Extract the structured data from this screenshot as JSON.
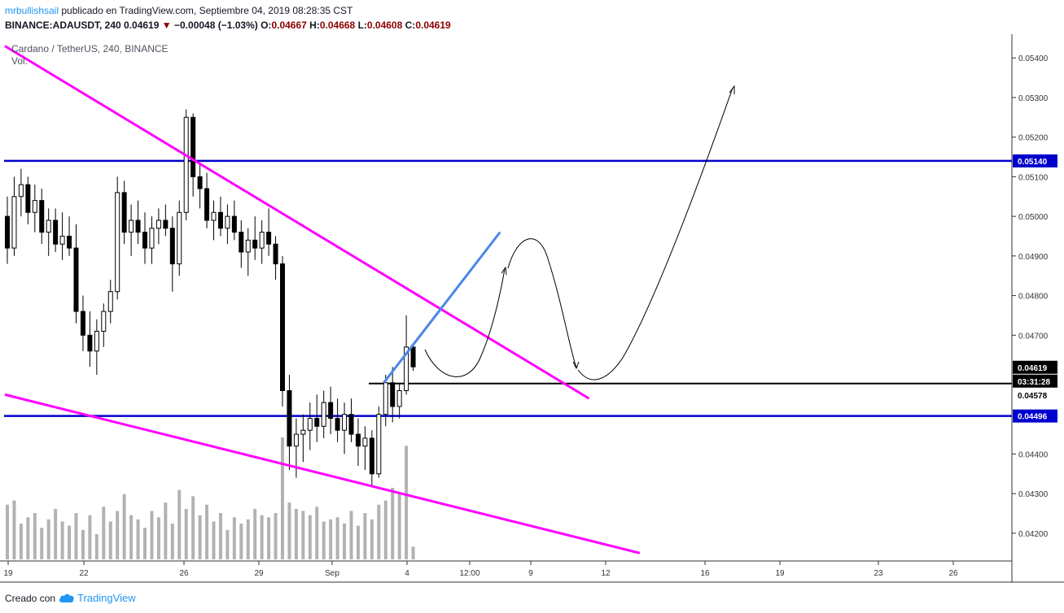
{
  "header": {
    "user": "mrbullishsail",
    "published": "publicado en TradingView.com, Septiembre 04, 2019 08:28:35 CST",
    "symbol": "BINANCE:ADAUSDT, 240",
    "last": "0.04619",
    "change_arrow": "▼",
    "change": "−0.00048 (−1.03%)",
    "o_label": "O:",
    "o": "0.04667",
    "h_label": "H:",
    "h": "0.04668",
    "l_label": "L:",
    "l": "0.04608",
    "c_label": "C:",
    "c": "0.04619"
  },
  "legend": {
    "title": "Cardano / TetherUS, 240, BINANCE",
    "volume": "Vol."
  },
  "footer": {
    "created_with": "Creado con",
    "brand": "TradingView",
    "brand_icon": "tradingview-cloud-icon"
  },
  "colors": {
    "candle": "#000000",
    "volume": "#b2b2b2",
    "support_resistance": "#0000cc",
    "trendline": "#ff00ff",
    "channel_line": "#4a86e8",
    "current_price": "#000000"
  },
  "chart_data": {
    "type": "candlestick",
    "y_axis": {
      "ticks": [
        "0.05400",
        "0.05300",
        "0.05200",
        "0.05100",
        "0.05000",
        "0.04900",
        "0.04800",
        "0.04700",
        "0.04400",
        "0.04300",
        "0.04200"
      ],
      "range": [
        0.0413,
        0.0546
      ]
    },
    "x_axis": {
      "ticks": [
        "19",
        "22",
        "26",
        "29",
        "Sep",
        "4",
        "12:00",
        "9",
        "12",
        "16",
        "19",
        "23",
        "26"
      ]
    },
    "price_labels": [
      {
        "text": "0.05140",
        "value": 0.0514,
        "style": "blue"
      },
      {
        "text": "0.04619",
        "value": 0.04619,
        "style": "black"
      },
      {
        "text": "03:31:28",
        "value": 0.04601,
        "style": "black"
      },
      {
        "text": "0.04578",
        "value": 0.04578,
        "style": "white"
      },
      {
        "text": "0.04496",
        "value": 0.04496,
        "style": "blue"
      }
    ],
    "horizontal_levels": [
      0.0514,
      0.04496
    ],
    "current_level": 0.04578,
    "candles": [
      [
        0.05,
        0.0505,
        0.0488,
        0.0492
      ],
      [
        0.0492,
        0.051,
        0.049,
        0.0505
      ],
      [
        0.0505,
        0.0512,
        0.05,
        0.0508
      ],
      [
        0.0508,
        0.051,
        0.0498,
        0.0501
      ],
      [
        0.0501,
        0.0508,
        0.0496,
        0.0504
      ],
      [
        0.0504,
        0.0507,
        0.0493,
        0.0496
      ],
      [
        0.0496,
        0.0502,
        0.049,
        0.0499
      ],
      [
        0.0499,
        0.0502,
        0.0491,
        0.0493
      ],
      [
        0.0493,
        0.0501,
        0.0489,
        0.0495
      ],
      [
        0.0495,
        0.05,
        0.049,
        0.0492
      ],
      [
        0.0492,
        0.0498,
        0.0473,
        0.0476
      ],
      [
        0.0476,
        0.048,
        0.0466,
        0.047
      ],
      [
        0.047,
        0.0476,
        0.0462,
        0.0466
      ],
      [
        0.0466,
        0.0474,
        0.046,
        0.0471
      ],
      [
        0.0471,
        0.0478,
        0.0467,
        0.0476
      ],
      [
        0.0476,
        0.0484,
        0.0473,
        0.0481
      ],
      [
        0.0481,
        0.051,
        0.0479,
        0.0506
      ],
      [
        0.0506,
        0.0509,
        0.0493,
        0.0496
      ],
      [
        0.0496,
        0.0503,
        0.049,
        0.0499
      ],
      [
        0.0499,
        0.0504,
        0.0493,
        0.0496
      ],
      [
        0.0496,
        0.0501,
        0.0488,
        0.0492
      ],
      [
        0.0492,
        0.05,
        0.0488,
        0.0497
      ],
      [
        0.0497,
        0.0502,
        0.0493,
        0.0499
      ],
      [
        0.0499,
        0.0503,
        0.0495,
        0.0497
      ],
      [
        0.0497,
        0.05,
        0.0481,
        0.0488
      ],
      [
        0.0488,
        0.0504,
        0.0485,
        0.0501
      ],
      [
        0.0501,
        0.0527,
        0.0499,
        0.0525
      ],
      [
        0.0525,
        0.0526,
        0.0505,
        0.051
      ],
      [
        0.051,
        0.0513,
        0.0502,
        0.0507
      ],
      [
        0.0507,
        0.0511,
        0.0497,
        0.0499
      ],
      [
        0.0499,
        0.0504,
        0.0494,
        0.0501
      ],
      [
        0.0501,
        0.0505,
        0.0495,
        0.0497
      ],
      [
        0.0497,
        0.0503,
        0.0493,
        0.05
      ],
      [
        0.05,
        0.0504,
        0.0494,
        0.0496
      ],
      [
        0.0496,
        0.0499,
        0.0487,
        0.0491
      ],
      [
        0.0491,
        0.0497,
        0.0485,
        0.0494
      ],
      [
        0.0494,
        0.05,
        0.0489,
        0.0492
      ],
      [
        0.0492,
        0.0499,
        0.0488,
        0.0496
      ],
      [
        0.0496,
        0.0502,
        0.049,
        0.0493
      ],
      [
        0.0493,
        0.0495,
        0.0484,
        0.0488
      ],
      [
        0.0488,
        0.049,
        0.0452,
        0.0456
      ],
      [
        0.0456,
        0.046,
        0.0436,
        0.0442
      ],
      [
        0.0442,
        0.0449,
        0.0434,
        0.0445
      ],
      [
        0.0445,
        0.045,
        0.0438,
        0.0446
      ],
      [
        0.0446,
        0.0453,
        0.0441,
        0.0449
      ],
      [
        0.0449,
        0.0455,
        0.0443,
        0.0447
      ],
      [
        0.0447,
        0.0456,
        0.0444,
        0.0453
      ],
      [
        0.0453,
        0.0457,
        0.0445,
        0.0449
      ],
      [
        0.0449,
        0.0454,
        0.0443,
        0.0446
      ],
      [
        0.0446,
        0.0453,
        0.044,
        0.045
      ],
      [
        0.045,
        0.0454,
        0.0443,
        0.0445
      ],
      [
        0.0445,
        0.0449,
        0.0437,
        0.0442
      ],
      [
        0.0442,
        0.0447,
        0.0436,
        0.0444
      ],
      [
        0.0444,
        0.0446,
        0.0432,
        0.0435
      ],
      [
        0.0435,
        0.0452,
        0.0434,
        0.045
      ],
      [
        0.045,
        0.046,
        0.0447,
        0.0458
      ],
      [
        0.0458,
        0.0462,
        0.0448,
        0.0452
      ],
      [
        0.0452,
        0.0458,
        0.0449,
        0.0456
      ],
      [
        0.0456,
        0.0475,
        0.0455,
        0.0467
      ],
      [
        0.0467,
        0.0468,
        0.0461,
        0.0462
      ]
    ],
    "volumes": [
      26,
      28,
      17,
      20,
      22,
      15,
      19,
      24,
      18,
      16,
      22,
      14,
      21,
      12,
      25,
      18,
      23,
      31,
      21,
      19,
      15,
      23,
      20,
      27,
      17,
      33,
      24,
      30,
      21,
      26,
      18,
      22,
      14,
      20,
      17,
      19,
      24,
      21,
      20,
      22,
      58,
      27,
      24,
      23,
      21,
      25,
      18,
      19,
      20,
      17,
      23,
      16,
      22,
      19,
      26,
      28,
      34,
      31,
      54,
      6
    ],
    "trendlines": [
      {
        "color": "magenta",
        "from": [
          0.0,
          0.0543
        ],
        "to": [
          0.55,
          0.0454
        ]
      },
      {
        "color": "magenta",
        "from": [
          0.0,
          0.0455
        ],
        "to": [
          0.6,
          0.0415
        ]
      },
      {
        "color": "blue",
        "from": [
          0.36,
          0.0458
        ],
        "to": [
          0.47,
          0.0496
        ]
      }
    ]
  }
}
